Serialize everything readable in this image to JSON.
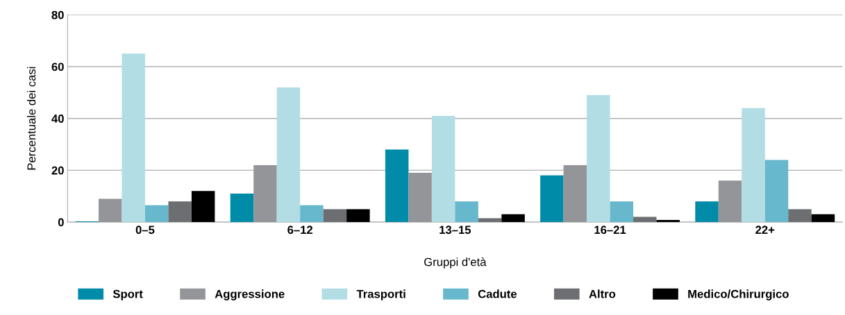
{
  "chart_data": {
    "type": "bar",
    "xlabel": "Gruppi d'età",
    "ylabel": "Percentuale dei casi",
    "categories": [
      "0–5",
      "6–12",
      "13–15",
      "16–21",
      "22+"
    ],
    "series": [
      {
        "name": "Sport",
        "color": "#008ba8",
        "values": [
          0.3,
          11,
          28,
          18,
          8
        ]
      },
      {
        "name": "Aggressione",
        "color": "#939598",
        "values": [
          9,
          22,
          19,
          22,
          16
        ]
      },
      {
        "name": "Trasporti",
        "color": "#b2dde5",
        "values": [
          65,
          52,
          41,
          49,
          44
        ]
      },
      {
        "name": "Cadute",
        "color": "#67b8cc",
        "values": [
          6.5,
          6.5,
          8,
          8,
          24
        ]
      },
      {
        "name": "Altro",
        "color": "#6d6e71",
        "values": [
          8,
          5,
          1.5,
          2,
          5
        ]
      },
      {
        "name": "Medico/Chirurgico",
        "color": "#000000",
        "values": [
          12,
          5,
          3,
          0.8,
          3
        ]
      }
    ],
    "ylim": [
      0,
      80
    ],
    "yticks": [
      0,
      20,
      40,
      60,
      80
    ],
    "grid": "y",
    "legend": "bottom"
  }
}
